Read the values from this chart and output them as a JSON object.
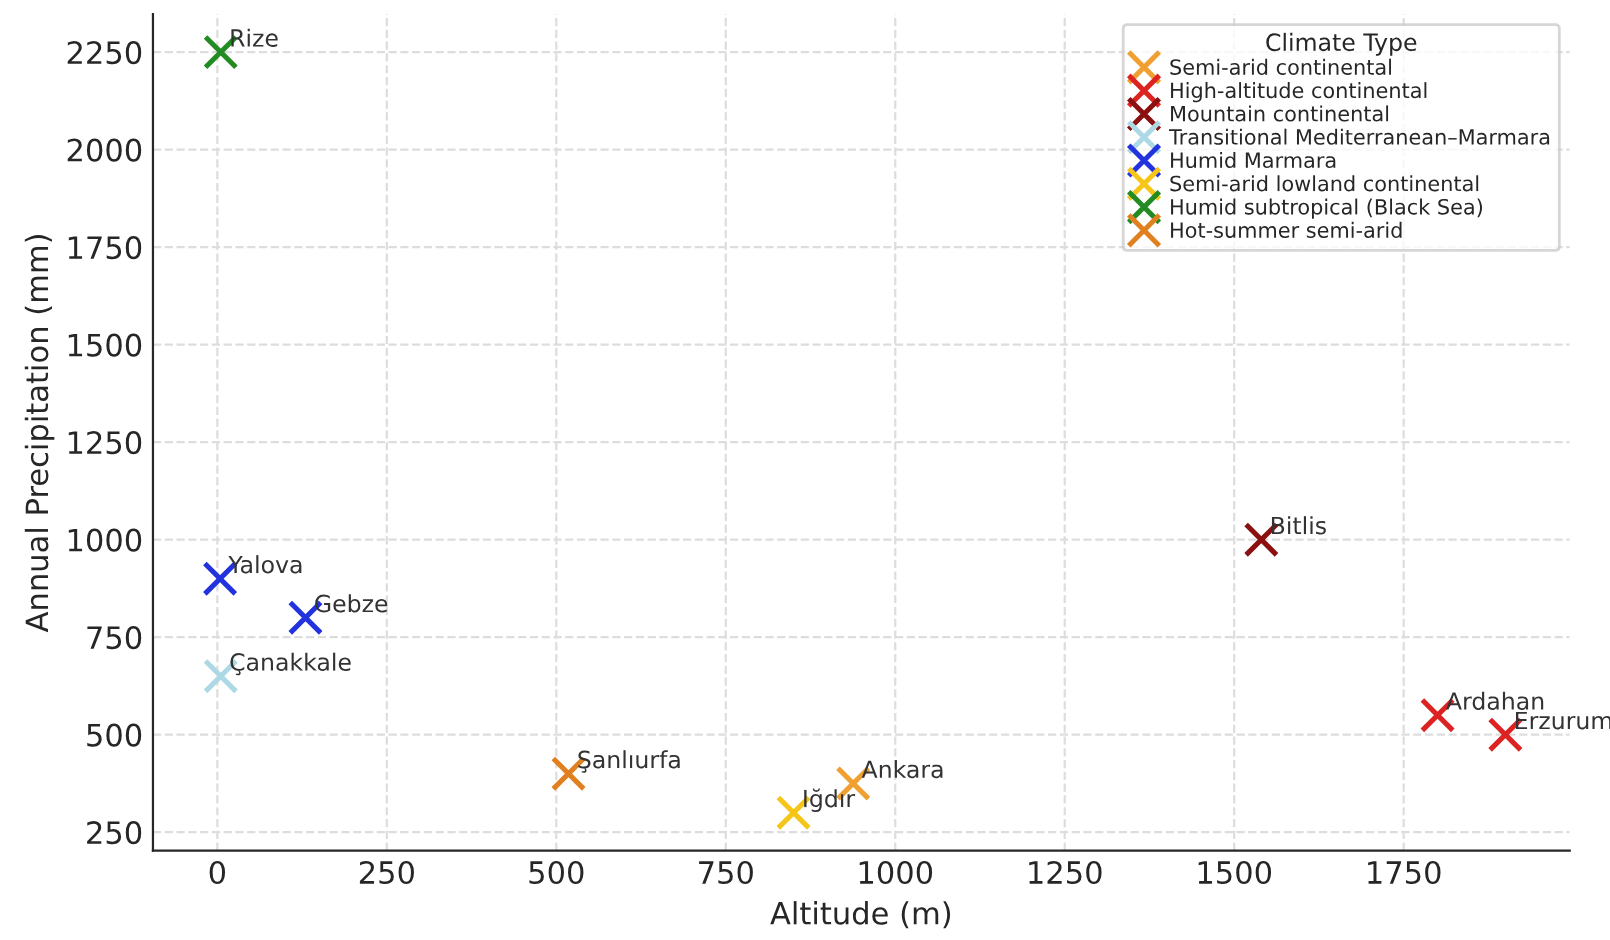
{
  "chart_data": {
    "type": "scatter",
    "xlabel": "Altitude (m)",
    "ylabel": "Annual Precipitation (mm)",
    "legend_title": "Climate Type",
    "legend": "top right",
    "grid": true,
    "marker": "cross",
    "xlim": [
      -95,
      1995
    ],
    "xticks": [
      0,
      250,
      500,
      750,
      1000,
      1250,
      1500,
      1750
    ],
    "ylim": [
      202.5,
      2347.5
    ],
    "yticks": [
      250,
      500,
      750,
      1000,
      1250,
      1500,
      1750,
      2000,
      2250
    ],
    "series": [
      {
        "name": "Semi-arid continental",
        "color": "#f0a030",
        "x": [
          938
        ],
        "values": [
          375
        ]
      },
      {
        "name": "High-altitude continental",
        "color": "#dd2222",
        "x": [
          1800,
          1900
        ],
        "values": [
          550,
          500
        ]
      },
      {
        "name": "Mountain continental",
        "color": "#8b1010",
        "x": [
          1540
        ],
        "values": [
          1000
        ]
      },
      {
        "name": "Transitional Mediterranean–Marmara",
        "color": "#add8e6",
        "x": [
          5
        ],
        "values": [
          650
        ]
      },
      {
        "name": "Humid Marmara",
        "color": "#2233dd",
        "x": [
          4,
          130
        ],
        "values": [
          900,
          800
        ]
      },
      {
        "name": "Semi-arid lowland continental",
        "color": "#f5c518",
        "x": [
          850
        ],
        "values": [
          300
        ]
      },
      {
        "name": "Humid subtropical (Black Sea)",
        "color": "#228b22",
        "x": [
          5
        ],
        "values": [
          2250
        ]
      },
      {
        "name": "Hot-summer semi-arid",
        "color": "#e08020",
        "x": [
          518
        ],
        "values": [
          400
        ]
      }
    ],
    "annotations": [
      {
        "text": "Rize",
        "x": 5,
        "y": 2250
      },
      {
        "text": "Yalova",
        "x": 4,
        "y": 900
      },
      {
        "text": "Gebze",
        "x": 130,
        "y": 800
      },
      {
        "text": "Çanakkale",
        "x": 5,
        "y": 650
      },
      {
        "text": "Şanlıurfa",
        "x": 518,
        "y": 400
      },
      {
        "text": "Ankara",
        "x": 938,
        "y": 375
      },
      {
        "text": "Iğdır",
        "x": 850,
        "y": 300
      },
      {
        "text": "Bitlis",
        "x": 1540,
        "y": 1000
      },
      {
        "text": "Ardahan",
        "x": 1800,
        "y": 550
      },
      {
        "text": "Erzurum",
        "x": 1900,
        "y": 500
      }
    ]
  }
}
